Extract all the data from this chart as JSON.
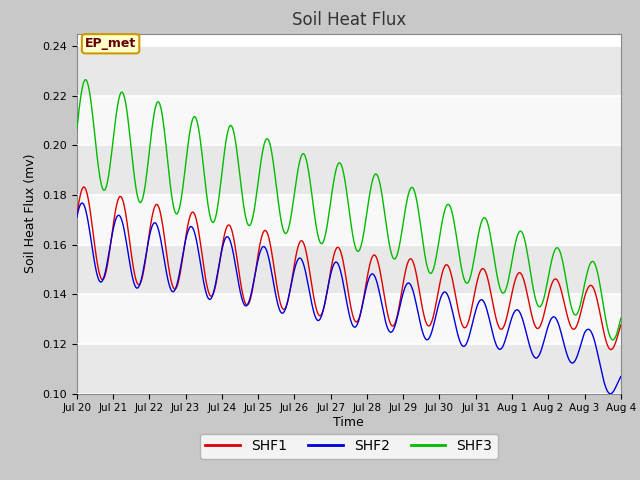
{
  "title": "Soil Heat Flux",
  "xlabel": "Time",
  "ylabel": "Soil Heat Flux (mv)",
  "ylim": [
    0.1,
    0.245
  ],
  "yticks": [
    0.1,
    0.12,
    0.14,
    0.16,
    0.18,
    0.2,
    0.22,
    0.24
  ],
  "fig_bg_color": "#c8c8c8",
  "plot_bg_color": "#ffffff",
  "annotation_text": "EP_met",
  "annotation_bg": "#ffffcc",
  "annotation_border": "#cc9900",
  "colors": {
    "SHF1": "#dd0000",
    "SHF2": "#0000dd",
    "SHF3": "#00bb00"
  },
  "xtick_labels": [
    "Jul 20",
    "Jul 21",
    "Jul 22",
    "Jul 23",
    "Jul 24",
    "Jul 25",
    "Jul 26",
    "Jul 27",
    "Jul 28",
    "Jul 29",
    "Jul 30",
    "Jul 31",
    "Aug 1",
    "Aug 2",
    "Aug 3",
    "Aug 4"
  ],
  "band_colors": [
    "#e8e8e8",
    "#f8f8f8"
  ],
  "n_points": 480
}
